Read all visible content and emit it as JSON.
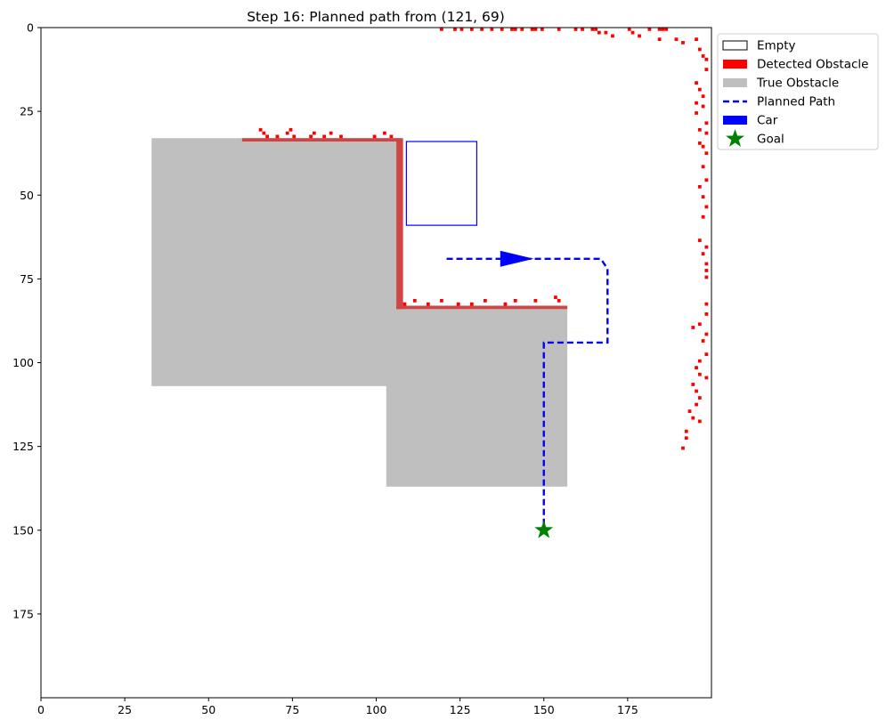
{
  "chart_data": {
    "type": "heatmap",
    "title": "Step 16: Planned path from (121, 69)",
    "xlabel": "",
    "ylabel": "",
    "xlim": [
      0,
      200
    ],
    "ylim": [
      200,
      0
    ],
    "grid": false,
    "legend_placement": "outside upper-right",
    "x_ticks": [
      0,
      25,
      50,
      75,
      100,
      125,
      150,
      175
    ],
    "y_ticks": [
      0,
      25,
      50,
      75,
      100,
      125,
      150,
      175
    ],
    "x_tick_labels": [
      "0",
      "25",
      "50",
      "75",
      "100",
      "125",
      "150",
      "175"
    ],
    "y_tick_labels": [
      "0",
      "25",
      "50",
      "75",
      "100",
      "125",
      "150",
      "175"
    ],
    "colors": {
      "empty": "#ffffff",
      "detected_obstacle": "#ff0000",
      "true_obstacle": "#bfbfbf",
      "overlap_edge": "#d04444",
      "planned_path": "#0000ff",
      "car": "#0000ff",
      "goal": "#008000"
    },
    "legend": [
      {
        "label": "Empty",
        "kind": "empty-swatch"
      },
      {
        "label": "Detected Obstacle",
        "kind": "detected-swatch"
      },
      {
        "label": "True Obstacle",
        "kind": "true-swatch"
      },
      {
        "label": "Planned Path",
        "kind": "path-line"
      },
      {
        "label": "Car",
        "kind": "car-swatch"
      },
      {
        "label": "Goal",
        "kind": "goal-star"
      }
    ],
    "true_obstacles": [
      {
        "x0": 33,
        "x1": 107,
        "y0": 33,
        "y1": 107
      },
      {
        "x0": 103,
        "x1": 157,
        "y0": 83,
        "y1": 137
      }
    ],
    "detected_edges": [
      {
        "x0": 60,
        "x1": 107,
        "y0": 33,
        "y1": 34
      },
      {
        "x0": 106,
        "x1": 108,
        "y0": 33,
        "y1": 84
      },
      {
        "x0": 106,
        "x1": 157,
        "y0": 83,
        "y1": 84
      }
    ],
    "detected_cells": [
      [
        65,
        30
      ],
      [
        66,
        31
      ],
      [
        67,
        32
      ],
      [
        70,
        32
      ],
      [
        73,
        31
      ],
      [
        74,
        30
      ],
      [
        75,
        32
      ],
      [
        80,
        32
      ],
      [
        81,
        31
      ],
      [
        84,
        32
      ],
      [
        86,
        31
      ],
      [
        89,
        32
      ],
      [
        99,
        32
      ],
      [
        102,
        31
      ],
      [
        104,
        32
      ],
      [
        108,
        82
      ],
      [
        111,
        81
      ],
      [
        115,
        82
      ],
      [
        119,
        81
      ],
      [
        124,
        82
      ],
      [
        128,
        82
      ],
      [
        132,
        81
      ],
      [
        138,
        82
      ],
      [
        141,
        81
      ],
      [
        147,
        81
      ],
      [
        153,
        80
      ],
      [
        154,
        81
      ],
      [
        119,
        0
      ],
      [
        123,
        0
      ],
      [
        125,
        0
      ],
      [
        128,
        0
      ],
      [
        131,
        0
      ],
      [
        134,
        0
      ],
      [
        137,
        0
      ],
      [
        140,
        0
      ],
      [
        141,
        0
      ],
      [
        143,
        0
      ],
      [
        146,
        0
      ],
      [
        147,
        0
      ],
      [
        149,
        0
      ],
      [
        154,
        0
      ],
      [
        159,
        0
      ],
      [
        161,
        0
      ],
      [
        164,
        0
      ],
      [
        165,
        0
      ],
      [
        166,
        1
      ],
      [
        168,
        1
      ],
      [
        170,
        2
      ],
      [
        175,
        0
      ],
      [
        176,
        1
      ],
      [
        178,
        2
      ],
      [
        181,
        0
      ],
      [
        184,
        0
      ],
      [
        185,
        0
      ],
      [
        186,
        0
      ],
      [
        184,
        3
      ],
      [
        189,
        3
      ],
      [
        191,
        4
      ],
      [
        195,
        3
      ],
      [
        196,
        6
      ],
      [
        197,
        8
      ],
      [
        198,
        9
      ],
      [
        198,
        12
      ],
      [
        195,
        16
      ],
      [
        196,
        18
      ],
      [
        197,
        20
      ],
      [
        195,
        22
      ],
      [
        197,
        23
      ],
      [
        195,
        25
      ],
      [
        198,
        28
      ],
      [
        196,
        30
      ],
      [
        198,
        31
      ],
      [
        196,
        34
      ],
      [
        197,
        35
      ],
      [
        198,
        37
      ],
      [
        197,
        41
      ],
      [
        198,
        45
      ],
      [
        196,
        47
      ],
      [
        197,
        50
      ],
      [
        198,
        53
      ],
      [
        197,
        56
      ],
      [
        196,
        63
      ],
      [
        198,
        65
      ],
      [
        197,
        67
      ],
      [
        198,
        70
      ],
      [
        198,
        72
      ],
      [
        198,
        74
      ],
      [
        198,
        82
      ],
      [
        198,
        85
      ],
      [
        196,
        88
      ],
      [
        194,
        89
      ],
      [
        198,
        91
      ],
      [
        197,
        93
      ],
      [
        198,
        97
      ],
      [
        196,
        99
      ],
      [
        195,
        101
      ],
      [
        196,
        103
      ],
      [
        198,
        104
      ],
      [
        194,
        106
      ],
      [
        195,
        108
      ],
      [
        196,
        110
      ],
      [
        195,
        112
      ],
      [
        193,
        114
      ],
      [
        194,
        116
      ],
      [
        196,
        117
      ],
      [
        192,
        120
      ],
      [
        192,
        122
      ],
      [
        191,
        125
      ]
    ],
    "planned_path": {
      "x": [
        121,
        167,
        167,
        169,
        169,
        150,
        150
      ],
      "y": [
        69,
        69,
        69,
        72,
        94,
        94,
        150
      ]
    },
    "heading_arrow": {
      "x": [
        137,
        147
      ],
      "y": [
        69,
        69
      ]
    },
    "car_rect": {
      "x0": 109,
      "x1": 130,
      "y0": 34,
      "y1": 59
    },
    "goal": {
      "x": 150,
      "y": 150
    }
  }
}
